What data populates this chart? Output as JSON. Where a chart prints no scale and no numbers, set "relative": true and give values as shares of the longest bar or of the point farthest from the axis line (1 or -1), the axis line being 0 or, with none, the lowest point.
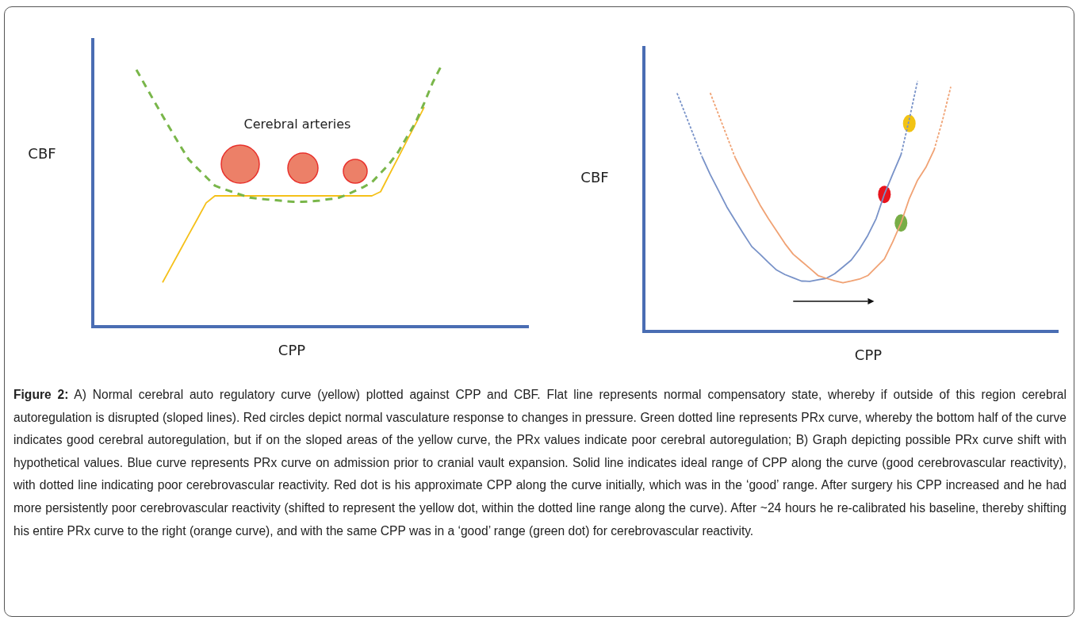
{
  "chart_data": [
    {
      "type": "line",
      "relative": true,
      "xlabel": "CPP",
      "ylabel": "CBF",
      "tick_labels": false,
      "categories": [
        null,
        null,
        null,
        null,
        null,
        null,
        null,
        null,
        null,
        null,
        null,
        null,
        null,
        null,
        null,
        null,
        null,
        null,
        null,
        null,
        null,
        null,
        null,
        null,
        null,
        null,
        null,
        null,
        null,
        null,
        null,
        null,
        null,
        null,
        null,
        null,
        null,
        null,
        null,
        null,
        null,
        null,
        null,
        null,
        null,
        null,
        null,
        null,
        null,
        null,
        null
      ],
      "series": [
        {
          "type": "line",
          "color": "#f5c019",
          "line_style": "solid",
          "values": [
            null,
            null,
            null,
            null,
            null,
            null,
            null,
            null,
            0.169,
            0.23,
            0.291,
            0.352,
            0.412,
            0.473,
            0.5,
            0.5,
            0.5,
            0.5,
            0.5,
            0.5,
            0.5,
            0.5,
            0.5,
            0.5,
            0.5,
            0.5,
            0.5,
            0.5,
            0.5,
            0.5,
            0.5,
            0.5,
            0.5,
            0.516,
            0.581,
            0.645,
            0.71,
            0.774,
            0.839,
            null,
            null,
            null,
            null,
            null,
            null,
            null,
            null,
            null,
            null,
            null,
            null
          ]
        },
        {
          "type": "line",
          "color": "#79b64a",
          "line_style": "dashed",
          "values": [
            null,
            null,
            null,
            null,
            null,
            0.982,
            0.923,
            0.864,
            0.806,
            0.749,
            0.693,
            0.639,
            0.605,
            0.572,
            0.539,
            0.526,
            0.515,
            0.504,
            0.493,
            0.489,
            0.486,
            0.483,
            0.48,
            0.477,
            0.477,
            0.479,
            0.482,
            0.487,
            0.49,
            0.503,
            0.518,
            0.533,
            0.552,
            0.587,
            0.623,
            0.667,
            0.724,
            0.78,
            0.855,
            0.935,
            1.0,
            null,
            null,
            null,
            null,
            null,
            null,
            null,
            null,
            null,
            null
          ]
        }
      ],
      "annotations": [
        "Cerebral arteries",
        "Figure 2: A) Normal cerebral auto regulatory curve (yellow) plotted against CPP and CBF. Flat line represents normal compensatory state, whereby if outside of this region cerebral autoregulation is disrupted (sloped lines). Red circles depict normal vasculature response to changes in pressure. Green dotted line represents PRx curve, whereby the bottom half of the curve indicates good cerebral autoregulation, but if on the sloped areas of the yellow curve, the PRx values indicate poor cerebral autoregulation; B) Graph depicting possible PRx curve shift with hypothetical values. Blue curve represents PRx curve on admission prior to cranial vault expansion. Solid line indicates ideal range of CPP along the curve (good cerebrovascular reactivity), with dotted line indicating poor cerebrovascular reactivity. Red dot is his approximate CPP along the curve initially, which was in the ‘good’ range. After surgery his CPP increased and he had more persistently poor cerebrovascular reactivity (shifted to represent the yellow dot, within the dotted line range along the curve). After ~24 hours he re-calibrated his baseline, thereby shifting his entire PRx curve to the right (orange curve), and with the same CPP was in a ‘good’ range (green dot) for cerebrovascular reactivity."
      ]
    },
    {
      "type": "line",
      "relative": true,
      "xlabel": "CPP",
      "ylabel": "CBF",
      "tick_labels": false,
      "categories": [
        null,
        null,
        null,
        null,
        null,
        null,
        null,
        null,
        null,
        null,
        null,
        null,
        null,
        null,
        null,
        null,
        null,
        null,
        null,
        null,
        null,
        null,
        null,
        null,
        null,
        null,
        null,
        null,
        null,
        null,
        null,
        null,
        null,
        null,
        null,
        null,
        null,
        null,
        null,
        null,
        null,
        null,
        null,
        null,
        null,
        null,
        null,
        null,
        null,
        null,
        null
      ],
      "series": [
        {
          "type": "line",
          "color": "#7892c8",
          "line_style": "dotted",
          "values": [
            null,
            null,
            null,
            null,
            0.951,
            0.867,
            0.782,
            0.698,
            null,
            null,
            null,
            null,
            null,
            null,
            null,
            null,
            null,
            null,
            null,
            null,
            null,
            null,
            null,
            null,
            null,
            null,
            null,
            null,
            null,
            null,
            null,
            null,
            null,
            null,
            null,
            null,
            null,
            null,
            null,
            null,
            null,
            null,
            null,
            null,
            null,
            null,
            null,
            null,
            null,
            null,
            null
          ]
        },
        {
          "type": "line",
          "color": "#7892c8",
          "line_style": "solid",
          "values": [
            null,
            null,
            null,
            null,
            null,
            null,
            null,
            0.698,
            0.626,
            0.562,
            0.497,
            0.443,
            0.39,
            0.339,
            0.308,
            0.276,
            0.245,
            0.227,
            0.214,
            0.201,
            0.2,
            0.206,
            0.212,
            0.23,
            0.257,
            0.285,
            0.329,
            0.383,
            0.45,
            0.548,
            0.628,
            0.705,
            null,
            null,
            null,
            null,
            null,
            null,
            null,
            null,
            null,
            null,
            null,
            null,
            null,
            null,
            null,
            null,
            null,
            null,
            null
          ]
        },
        {
          "type": "line",
          "color": "#7892c8",
          "line_style": "dotted",
          "values": [
            null,
            null,
            null,
            null,
            null,
            null,
            null,
            null,
            null,
            null,
            null,
            null,
            null,
            null,
            null,
            null,
            null,
            null,
            null,
            null,
            null,
            null,
            null,
            null,
            null,
            null,
            null,
            null,
            null,
            null,
            null,
            0.705,
            0.847,
            1.0,
            null,
            null,
            null,
            null,
            null,
            null,
            null,
            null,
            null,
            null,
            null,
            null,
            null,
            null,
            null,
            null,
            null
          ]
        },
        {
          "type": "line",
          "color": "#f0a274",
          "line_style": "dotted",
          "values": [
            null,
            null,
            null,
            null,
            null,
            null,
            null,
            null,
            0.952,
            0.866,
            0.78,
            0.694,
            null,
            null,
            null,
            null,
            null,
            null,
            null,
            null,
            null,
            null,
            null,
            null,
            null,
            null,
            null,
            null,
            null,
            null,
            null,
            null,
            null,
            null,
            null,
            null,
            null,
            null,
            null,
            null,
            null,
            null,
            null,
            null,
            null,
            null,
            null,
            null,
            null,
            null,
            null
          ]
        },
        {
          "type": "line",
          "color": "#f0a274",
          "line_style": "solid",
          "values": [
            null,
            null,
            null,
            null,
            null,
            null,
            null,
            null,
            null,
            null,
            null,
            0.694,
            0.628,
            0.567,
            0.505,
            0.451,
            0.401,
            0.351,
            0.308,
            0.28,
            0.252,
            0.223,
            0.212,
            0.202,
            0.194,
            0.201,
            0.209,
            0.223,
            0.256,
            0.289,
            0.357,
            0.433,
            0.53,
            0.604,
            0.655,
            0.725,
            null,
            null,
            null,
            null,
            null,
            null,
            null,
            null,
            null,
            null,
            null,
            null,
            null,
            null,
            null
          ]
        },
        {
          "type": "line",
          "color": "#f0a274",
          "line_style": "dotted",
          "values": [
            null,
            null,
            null,
            null,
            null,
            null,
            null,
            null,
            null,
            null,
            null,
            null,
            null,
            null,
            null,
            null,
            null,
            null,
            null,
            null,
            null,
            null,
            null,
            null,
            null,
            null,
            null,
            null,
            null,
            null,
            null,
            null,
            null,
            null,
            null,
            0.725,
            0.842,
            0.976,
            null,
            null,
            null,
            null,
            null,
            null,
            null,
            null,
            null,
            null,
            null,
            null,
            null
          ]
        }
      ]
    }
  ]
}
